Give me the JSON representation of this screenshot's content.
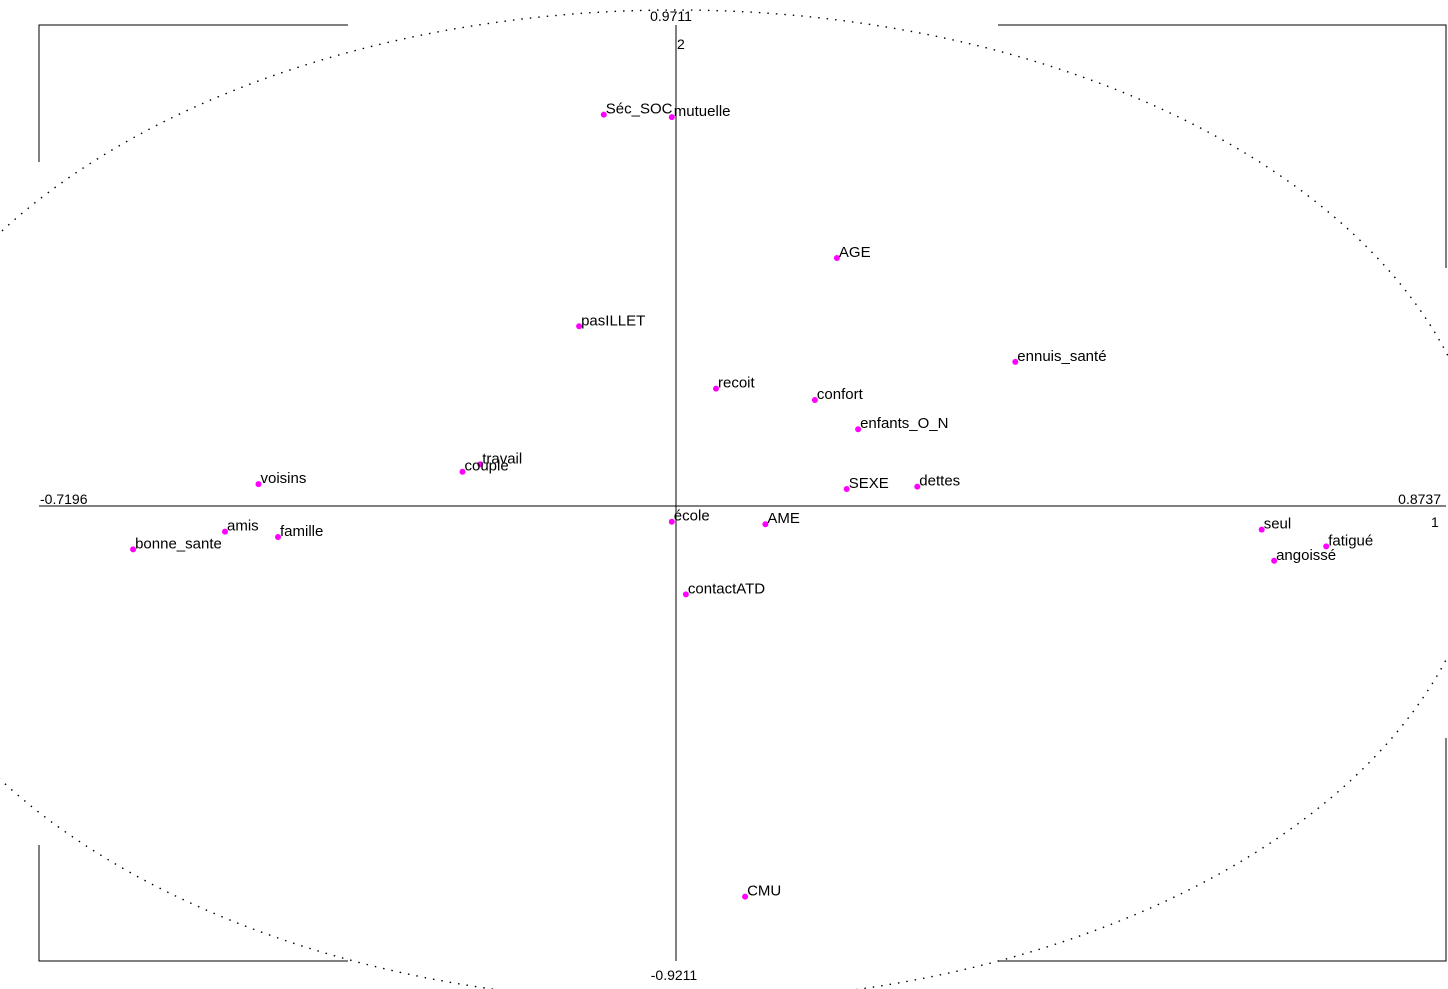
{
  "chart_data": {
    "type": "scatter",
    "title": "",
    "xlabel": "",
    "ylabel": "",
    "xlim": [
      -0.7196,
      0.8737
    ],
    "ylim": [
      -0.9211,
      0.9711
    ],
    "range_labels": {
      "x_min": "-0.7196",
      "x_max": "0.8737",
      "y_max": "0.9711",
      "y_min": "-0.9211"
    },
    "axis_numbers": {
      "x_axis": "1",
      "y_axis": "2"
    },
    "grid": false,
    "correlation_circle": true,
    "point_color": "#ff00ff",
    "points": [
      {
        "label": "Séc_SOC",
        "x": -0.08,
        "y": 0.79
      },
      {
        "label": "mutuelle",
        "x": -0.003,
        "y": 0.785
      },
      {
        "label": "AGE",
        "x": 0.184,
        "y": 0.5
      },
      {
        "label": "pasILLET",
        "x": -0.108,
        "y": 0.362
      },
      {
        "label": "ennuis_santé",
        "x": 0.386,
        "y": 0.29
      },
      {
        "label": "recoit",
        "x": 0.047,
        "y": 0.236
      },
      {
        "label": "confort",
        "x": 0.159,
        "y": 0.213
      },
      {
        "label": "enfants_O_N",
        "x": 0.208,
        "y": 0.154
      },
      {
        "label": "travail",
        "x": -0.22,
        "y": 0.083
      },
      {
        "label": "couple",
        "x": -0.24,
        "y": 0.068
      },
      {
        "label": "voisins",
        "x": -0.471,
        "y": 0.043
      },
      {
        "label": "SEXE",
        "x": 0.195,
        "y": 0.033
      },
      {
        "label": "dettes",
        "x": 0.275,
        "y": 0.038
      },
      {
        "label": "école",
        "x": -0.003,
        "y": -0.033
      },
      {
        "label": "AME",
        "x": 0.103,
        "y": -0.038
      },
      {
        "label": "amis",
        "x": -0.509,
        "y": -0.053
      },
      {
        "label": "famille",
        "x": -0.449,
        "y": -0.064
      },
      {
        "label": "bonne_sante",
        "x": -0.613,
        "y": -0.089
      },
      {
        "label": "seul",
        "x": 0.665,
        "y": -0.049
      },
      {
        "label": "fatigué",
        "x": 0.738,
        "y": -0.083
      },
      {
        "label": "angoissé",
        "x": 0.679,
        "y": -0.112
      },
      {
        "label": "contactATD",
        "x": 0.013,
        "y": -0.18
      },
      {
        "label": "CMU",
        "x": 0.08,
        "y": -0.791
      }
    ]
  }
}
